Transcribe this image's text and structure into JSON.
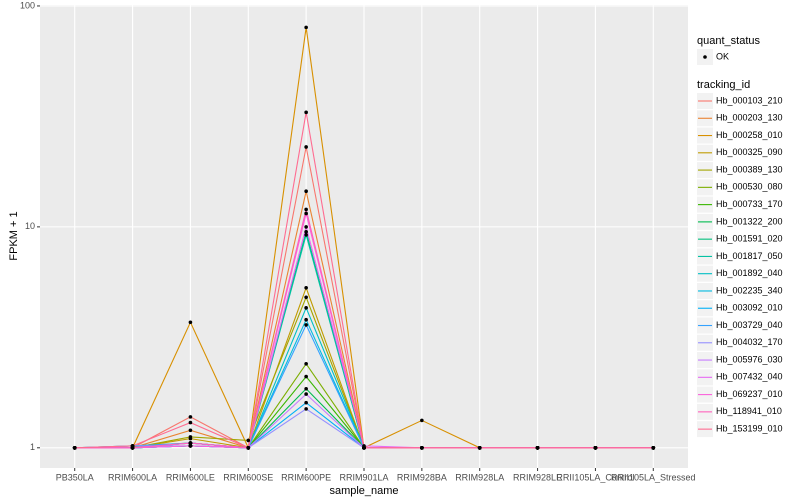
{
  "chart_data": {
    "type": "line",
    "x_label": "sample_name",
    "y_label": "FPKM + 1",
    "log_y": true,
    "grid": true,
    "categories": [
      "PB350LA",
      "RRIM600LA",
      "RRIM600LE",
      "RRIM600SE",
      "RRIM600PE",
      "RRIM901LA",
      "RRIM928BA",
      "RRIM928LA",
      "RRIM928LE",
      "RRII105LA_Control",
      "RRII105LA_Stressed"
    ],
    "ylim": [
      0.81,
      101
    ],
    "yticks": [
      1,
      10,
      100
    ],
    "point_legend_title": "quant_status",
    "point_legend_label": "OK",
    "point_color": "#000000",
    "legend_title": "tracking_id",
    "series": [
      {
        "name": "Hb_000103_210",
        "color": "#F8766D",
        "values": [
          1,
          1,
          1.38,
          1,
          23,
          1,
          1,
          1,
          1,
          1,
          1
        ]
      },
      {
        "name": "Hb_000203_130",
        "color": "#EA8331",
        "values": [
          1,
          1,
          1.2,
          1,
          14.5,
          1,
          1,
          1,
          1,
          1,
          1
        ]
      },
      {
        "name": "Hb_000258_010",
        "color": "#D89000",
        "values": [
          1,
          1,
          3.7,
          1,
          80,
          1,
          1.33,
          1,
          1,
          1,
          1
        ]
      },
      {
        "name": "Hb_000325_090",
        "color": "#C09B00",
        "values": [
          1,
          1,
          1.1,
          1,
          5.3,
          1,
          1,
          1,
          1,
          1,
          1
        ]
      },
      {
        "name": "Hb_000389_130",
        "color": "#A3A500",
        "values": [
          1,
          1,
          1.12,
          1.08,
          4.8,
          1,
          1,
          1,
          1,
          1,
          1
        ]
      },
      {
        "name": "Hb_000530_080",
        "color": "#7CAE00",
        "values": [
          1,
          1.02,
          1.05,
          1,
          2.4,
          1,
          1,
          1,
          1,
          1,
          1
        ]
      },
      {
        "name": "Hb_000733_170",
        "color": "#39B600",
        "values": [
          1,
          1,
          1.02,
          1,
          2.1,
          1,
          1,
          1,
          1,
          1,
          1
        ]
      },
      {
        "name": "Hb_001322_200",
        "color": "#00BB4E",
        "values": [
          1,
          1,
          1.05,
          1,
          1.85,
          1,
          1,
          1,
          1,
          1,
          1
        ]
      },
      {
        "name": "Hb_001591_020",
        "color": "#00BF7D",
        "values": [
          1,
          1,
          1.02,
          1,
          9.5,
          1,
          1,
          1,
          1,
          1,
          1
        ]
      },
      {
        "name": "Hb_001817_050",
        "color": "#00C1A3",
        "values": [
          1,
          1,
          1.02,
          1,
          9.2,
          1,
          1,
          1,
          1,
          1,
          1
        ]
      },
      {
        "name": "Hb_001892_040",
        "color": "#00BFC4",
        "values": [
          1,
          1,
          1.05,
          1,
          4.3,
          1,
          1,
          1,
          1,
          1,
          1
        ]
      },
      {
        "name": "Hb_002235_340",
        "color": "#00BAE0",
        "values": [
          1,
          1,
          1.02,
          1,
          3.8,
          1,
          1,
          1,
          1,
          1,
          1
        ]
      },
      {
        "name": "Hb_003092_010",
        "color": "#00B0F6",
        "values": [
          1,
          1,
          1.02,
          1,
          1.6,
          1,
          1,
          1,
          1,
          1,
          1
        ]
      },
      {
        "name": "Hb_003729_040",
        "color": "#35A2FF",
        "values": [
          1,
          1.02,
          1.05,
          1,
          3.6,
          1,
          1,
          1,
          1,
          1,
          1
        ]
      },
      {
        "name": "Hb_004032_170",
        "color": "#9590FF",
        "values": [
          1,
          1.02,
          1.02,
          1,
          1.5,
          1,
          1,
          1,
          1,
          1,
          1
        ]
      },
      {
        "name": "Hb_005976_030",
        "color": "#C77CFF",
        "values": [
          1,
          1,
          1.05,
          1,
          1.75,
          1,
          1,
          1,
          1,
          1,
          1
        ]
      },
      {
        "name": "Hb_007432_040",
        "color": "#E76BF3",
        "values": [
          1,
          1,
          1.02,
          1,
          10,
          1.02,
          1,
          1,
          1,
          1,
          1
        ]
      },
      {
        "name": "Hb_069237_010",
        "color": "#FA62DB",
        "values": [
          1,
          1,
          1.02,
          1,
          11.5,
          1,
          1,
          1,
          1,
          1,
          1
        ]
      },
      {
        "name": "Hb_118941_010",
        "color": "#FF62BC",
        "values": [
          1,
          1,
          1.05,
          1,
          12,
          1,
          1,
          1,
          1,
          1,
          1
        ]
      },
      {
        "name": "Hb_153199_010",
        "color": "#FF6C91",
        "values": [
          1,
          1.02,
          1.3,
          1,
          33,
          1,
          1,
          1,
          1,
          1,
          1
        ]
      }
    ]
  }
}
